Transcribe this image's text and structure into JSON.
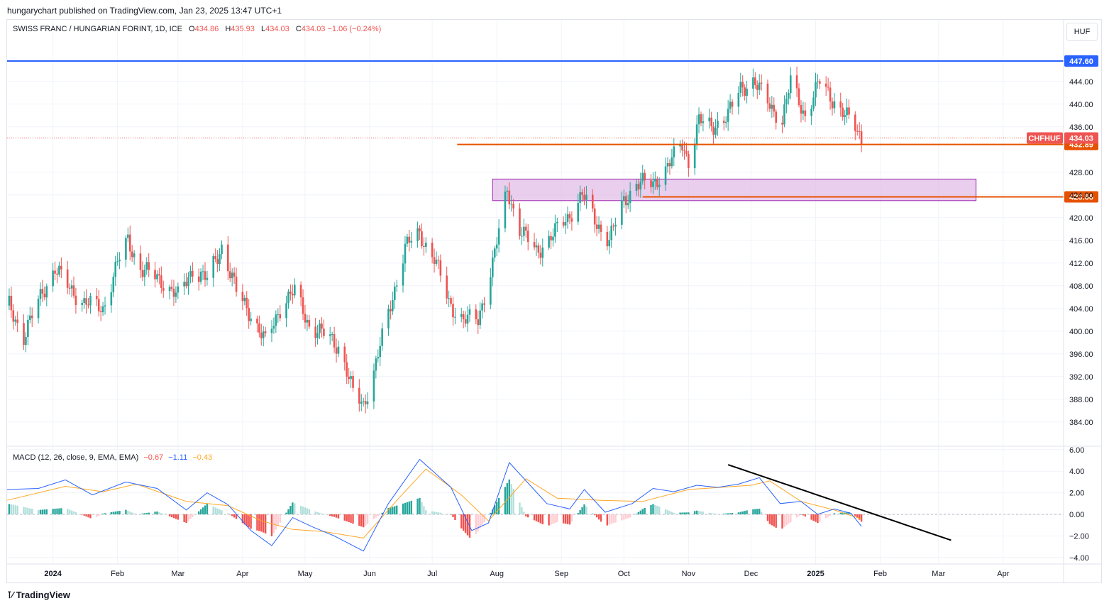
{
  "header": {
    "published": "hungarychart published on TradingView.com, Jan 23, 2025 13:47 UTC+1"
  },
  "legend": {
    "symbol": "SWISS FRANC / HUNGARIAN FORINT, 1D, ICE",
    "open_label": "O",
    "open": "434.86",
    "high_label": "H",
    "high": "435.93",
    "low_label": "L",
    "low": "434.03",
    "close_label": "C",
    "close": "434.03",
    "change": "−1.06 (−0.24%)"
  },
  "macd_legend": {
    "title": "MACD (12, 26, close, 9, EMA, EMA)",
    "hist": "−0.67",
    "macd": "−1.11",
    "signal": "−0.43"
  },
  "unit": "HUF",
  "footer": {
    "brand": "TradingView"
  },
  "colors": {
    "up": "#26a69a",
    "down": "#ef5350",
    "blue_line": "#2962ff",
    "orange_line": "#e65100",
    "zone_fill": "#e1bee7",
    "zone_border": "#9c27b0",
    "macd_line": "#2962ff",
    "signal_line": "#ffa726",
    "trend_line": "#000000"
  },
  "chart_data": [
    {
      "type": "candlestick",
      "title": "SWISS FRANC / HUNGARIAN FORINT, 1D, ICE",
      "ylim": [
        380,
        450
      ],
      "y_ticks": [
        "444.00",
        "440.00",
        "436.00",
        "428.00",
        "424.00",
        "420.00",
        "416.00",
        "412.00",
        "408.00",
        "404.00",
        "400.00",
        "396.00",
        "392.00",
        "388.00",
        "384.00"
      ],
      "x_ticks": [
        "2024",
        "Feb",
        "Mar",
        "Apr",
        "May",
        "Jun",
        "Jul",
        "Aug",
        "Sep",
        "Oct",
        "Nov",
        "Dec",
        "2025",
        "Feb",
        "Mar",
        "Apr"
      ],
      "x_range": [
        "2023-12-10",
        "2025-04-30"
      ],
      "price_path": [
        [
          "2023-12-11",
          404.5
        ],
        [
          "2023-12-18",
          399
        ],
        [
          "2023-12-27",
          407
        ],
        [
          "2024-01-02",
          411
        ],
        [
          "2024-01-08",
          408
        ],
        [
          "2024-01-16",
          405
        ],
        [
          "2024-01-25",
          404
        ],
        [
          "2024-02-01",
          412
        ],
        [
          "2024-02-06",
          416
        ],
        [
          "2024-02-12",
          411
        ],
        [
          "2024-02-22",
          409
        ],
        [
          "2024-03-01",
          406
        ],
        [
          "2024-03-08",
          411
        ],
        [
          "2024-03-15",
          409
        ],
        [
          "2024-03-22",
          415
        ],
        [
          "2024-03-29",
          407
        ],
        [
          "2024-04-05",
          403
        ],
        [
          "2024-04-12",
          398
        ],
        [
          "2024-04-20",
          405
        ],
        [
          "2024-04-26",
          407
        ],
        [
          "2024-05-03",
          401
        ],
        [
          "2024-05-12",
          399
        ],
        [
          "2024-05-18",
          397
        ],
        [
          "2024-05-24",
          389
        ],
        [
          "2024-05-29",
          387
        ],
        [
          "2024-06-03",
          393
        ],
        [
          "2024-06-10",
          403
        ],
        [
          "2024-06-18",
          415
        ],
        [
          "2024-06-25",
          417
        ],
        [
          "2024-07-02",
          413
        ],
        [
          "2024-07-09",
          405
        ],
        [
          "2024-07-16",
          402
        ],
        [
          "2024-07-23",
          402
        ],
        [
          "2024-07-30",
          412
        ],
        [
          "2024-08-04",
          421
        ],
        [
          "2024-08-06",
          425
        ],
        [
          "2024-08-12",
          418
        ],
        [
          "2024-08-20",
          414
        ],
        [
          "2024-08-28",
          417
        ],
        [
          "2024-09-04",
          420
        ],
        [
          "2024-09-11",
          424
        ],
        [
          "2024-09-18",
          419
        ],
        [
          "2024-09-24",
          416
        ],
        [
          "2024-10-01",
          423
        ],
        [
          "2024-10-07",
          426
        ],
        [
          "2024-10-15",
          426
        ],
        [
          "2024-10-22",
          429
        ],
        [
          "2024-10-29",
          433
        ],
        [
          "2024-11-01",
          430
        ],
        [
          "2024-11-06",
          437
        ],
        [
          "2024-11-12",
          436
        ],
        [
          "2024-11-20",
          438
        ],
        [
          "2024-11-26",
          443
        ],
        [
          "2024-12-02",
          444
        ],
        [
          "2024-12-10",
          440
        ],
        [
          "2024-12-16",
          437
        ],
        [
          "2024-12-20",
          444
        ],
        [
          "2024-12-27",
          438
        ],
        [
          "2025-01-03",
          444
        ],
        [
          "2025-01-09",
          441
        ],
        [
          "2025-01-15",
          438
        ],
        [
          "2025-01-20",
          436
        ],
        [
          "2025-01-23",
          434.03
        ]
      ],
      "last_candle": {
        "open": 434.86,
        "high": 435.93,
        "low": 434.03,
        "close": 434.03
      },
      "horizontal_lines": [
        {
          "name": "resistance-high",
          "value": 447.6,
          "label": "447.60",
          "from": "2023-12-10"
        },
        {
          "name": "support-upper",
          "value": 432.89,
          "label": "432.89",
          "from": "2024-07-13"
        },
        {
          "name": "support-lower",
          "value": 423.66,
          "label": "423.66",
          "from": "2024-10-10"
        }
      ],
      "last_price_tag": {
        "symbol": "CHFHUF",
        "value": "434.03"
      },
      "zone": {
        "from": "2024-07-30",
        "to": "2025-03-19",
        "low": 423.0,
        "high": 426.8
      }
    },
    {
      "type": "macd",
      "title": "MACD (12, 26, close, 9, EMA, EMA)",
      "ylim": [
        -4.5,
        6.5
      ],
      "y_ticks": [
        "6.00",
        "4.00",
        "2.00",
        "0.00",
        "−2.00",
        "−4.00"
      ],
      "macd_path": [
        [
          "2023-12-10",
          2.3
        ],
        [
          "2023-12-25",
          2.4
        ],
        [
          "2024-01-07",
          3.2
        ],
        [
          "2024-01-20",
          1.8
        ],
        [
          "2024-02-05",
          3.0
        ],
        [
          "2024-02-20",
          2.4
        ],
        [
          "2024-03-05",
          0.4
        ],
        [
          "2024-03-15",
          2.0
        ],
        [
          "2024-03-25",
          0.9
        ],
        [
          "2024-04-05",
          -1.5
        ],
        [
          "2024-04-15",
          -2.9
        ],
        [
          "2024-04-25",
          -0.3
        ],
        [
          "2024-05-05",
          -1.2
        ],
        [
          "2024-05-15",
          -2.0
        ],
        [
          "2024-05-29",
          -3.4
        ],
        [
          "2024-06-10",
          1.0
        ],
        [
          "2024-06-25",
          5.1
        ],
        [
          "2024-07-10",
          2.5
        ],
        [
          "2024-07-20",
          -1.5
        ],
        [
          "2024-07-28",
          -0.8
        ],
        [
          "2024-08-07",
          4.8
        ],
        [
          "2024-08-25",
          1.0
        ],
        [
          "2024-09-05",
          0.5
        ],
        [
          "2024-09-12",
          2.3
        ],
        [
          "2024-09-22",
          0.2
        ],
        [
          "2024-10-05",
          1.0
        ],
        [
          "2024-10-15",
          2.4
        ],
        [
          "2024-10-25",
          2.1
        ],
        [
          "2024-11-05",
          2.7
        ],
        [
          "2024-11-15",
          2.5
        ],
        [
          "2024-11-25",
          2.8
        ],
        [
          "2024-12-05",
          3.4
        ],
        [
          "2024-12-15",
          1.0
        ],
        [
          "2024-12-25",
          1.2
        ],
        [
          "2025-01-02",
          0.0
        ],
        [
          "2025-01-10",
          0.5
        ],
        [
          "2025-01-18",
          0.1
        ],
        [
          "2025-01-23",
          -1.11
        ]
      ],
      "signal_path": [
        [
          "2023-12-10",
          1.3
        ],
        [
          "2024-01-07",
          2.6
        ],
        [
          "2024-01-25",
          2.1
        ],
        [
          "2024-02-10",
          2.8
        ],
        [
          "2024-03-05",
          1.2
        ],
        [
          "2024-03-25",
          0.8
        ],
        [
          "2024-04-10",
          -0.6
        ],
        [
          "2024-04-25",
          -1.4
        ],
        [
          "2024-05-10",
          -1.6
        ],
        [
          "2024-05-29",
          -2.2
        ],
        [
          "2024-06-15",
          1.5
        ],
        [
          "2024-06-28",
          4.2
        ],
        [
          "2024-07-15",
          1.8
        ],
        [
          "2024-07-28",
          -0.6
        ],
        [
          "2024-08-15",
          3.3
        ],
        [
          "2024-08-30",
          1.5
        ],
        [
          "2024-09-20",
          1.3
        ],
        [
          "2024-10-10",
          1.2
        ],
        [
          "2024-11-01",
          2.3
        ],
        [
          "2024-12-01",
          2.7
        ],
        [
          "2024-12-10",
          3.1
        ],
        [
          "2024-12-25",
          1.2
        ],
        [
          "2025-01-10",
          0.4
        ],
        [
          "2025-01-23",
          -0.43
        ]
      ],
      "last_values": {
        "hist": -0.67,
        "macd": -1.11,
        "signal": -0.43
      },
      "trend_line": {
        "from": [
          "2024-11-20",
          4.6
        ],
        "to": [
          "2025-03-07",
          -2.4
        ]
      }
    }
  ]
}
